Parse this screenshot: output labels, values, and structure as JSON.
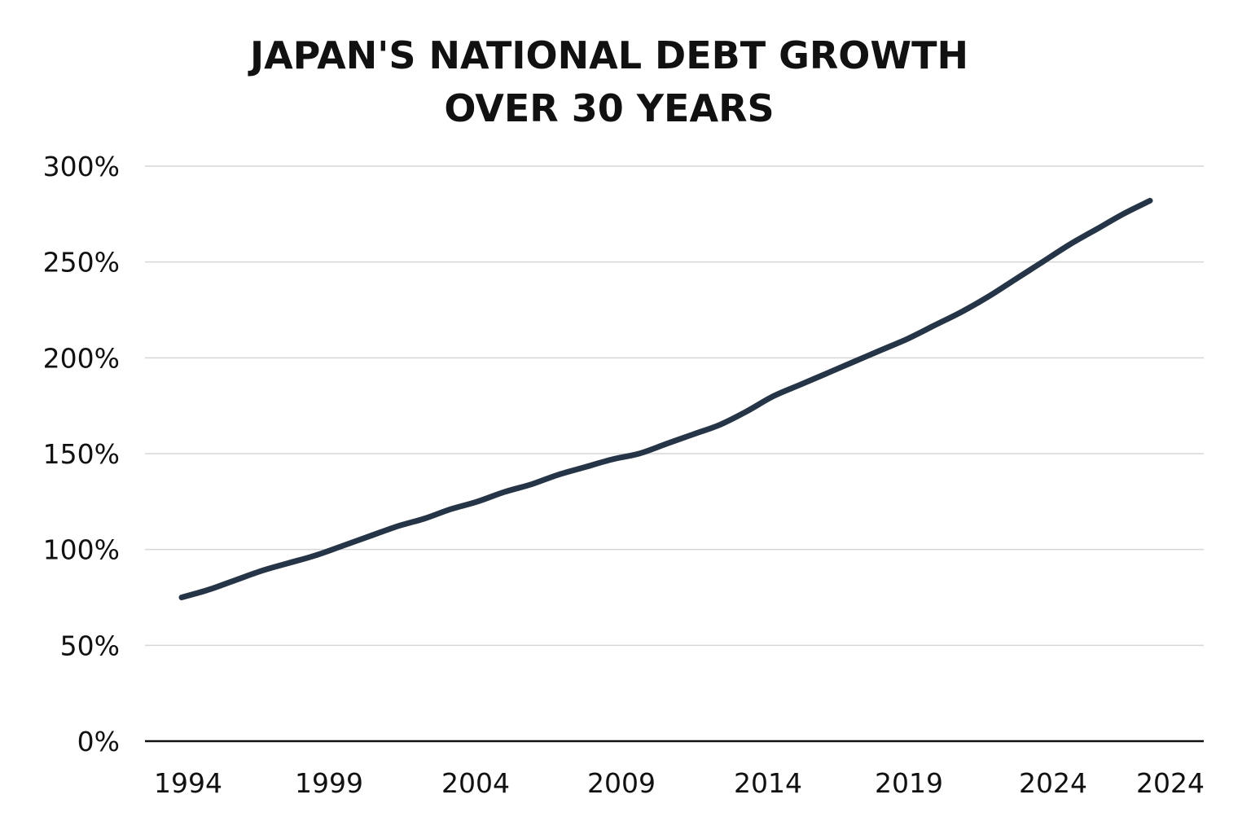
{
  "chart_data": {
    "type": "line",
    "title": [
      "JAPAN'S NATIONAL DEBT GROWTH",
      "OVER 30 YEARS"
    ],
    "xlabel": "",
    "ylabel": "",
    "y_ticks": [
      "0%",
      "50%",
      "100%",
      "150%",
      "200%",
      "250%",
      "300%"
    ],
    "x_ticks": [
      "1994",
      "1999",
      "2004",
      "2009",
      "2014",
      "2019",
      "2024",
      "2024"
    ],
    "ylim": [
      0,
      300
    ],
    "xlim": [
      1994,
      2031.5
    ],
    "grid": true,
    "line_color": "#253446",
    "series": [
      {
        "x": [
          1994,
          1995,
          1996,
          1997,
          1998,
          1999,
          2000,
          2001,
          2002,
          2003,
          2004,
          2005,
          2006,
          2007,
          2008,
          2009,
          2010,
          2011,
          2012,
          2013,
          2014,
          2015,
          2016,
          2017,
          2018,
          2019,
          2020,
          2021,
          2022,
          2023,
          2024,
          2025,
          2026,
          2027,
          2028,
          2029,
          2030
        ],
        "values": [
          75,
          79,
          84,
          89,
          93,
          97,
          102,
          107,
          112,
          116,
          121,
          125,
          130,
          134,
          139,
          143,
          147,
          150,
          155,
          160,
          165,
          172,
          180,
          186,
          192,
          198,
          204,
          210,
          217,
          224,
          232,
          241,
          250,
          259,
          267,
          275,
          282
        ]
      }
    ]
  }
}
